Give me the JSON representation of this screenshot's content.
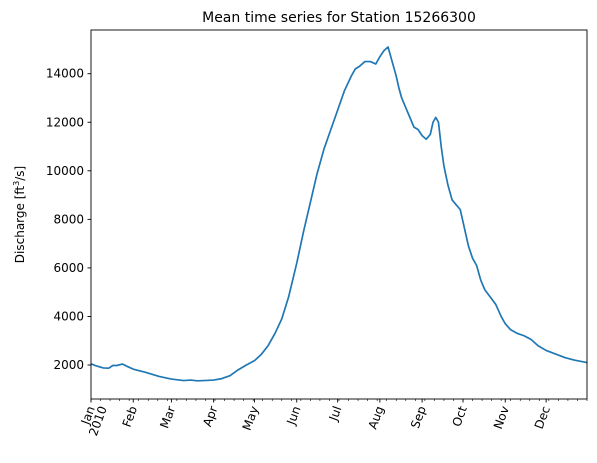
{
  "chart_data": {
    "type": "line",
    "title": "Mean time series for Station 15266300",
    "xlabel": "",
    "ylabel_prefix": "Discharge [ft",
    "ylabel_sup": "3",
    "ylabel_suffix": "/s]",
    "ylim": [
      600,
      15800
    ],
    "y_ticks": [
      2000,
      4000,
      6000,
      8000,
      10000,
      12000,
      14000
    ],
    "y_tick_labels": [
      "2000",
      "4000",
      "6000",
      "8000",
      "10000",
      "12000",
      "14000"
    ],
    "xlim": [
      "2010-01-01",
      "2010-12-31"
    ],
    "x_major_ticks": [
      {
        "date": "2010-01-01",
        "label": "Jan",
        "label2": "2010"
      },
      {
        "date": "2010-02-01",
        "label": "Feb"
      },
      {
        "date": "2010-03-01",
        "label": "Mar"
      },
      {
        "date": "2010-04-01",
        "label": "Apr"
      },
      {
        "date": "2010-05-01",
        "label": "May"
      },
      {
        "date": "2010-06-01",
        "label": "Jun"
      },
      {
        "date": "2010-07-01",
        "label": "Jul"
      },
      {
        "date": "2010-08-01",
        "label": "Aug"
      },
      {
        "date": "2010-09-01",
        "label": "Sep"
      },
      {
        "date": "2010-10-01",
        "label": "Oct"
      },
      {
        "date": "2010-11-01",
        "label": "Nov"
      },
      {
        "date": "2010-12-01",
        "label": "Dec"
      }
    ],
    "grid": false,
    "series": [
      {
        "color": "#1f77b4",
        "x": [
          "2010-01-01",
          "2010-01-05",
          "2010-01-10",
          "2010-01-14",
          "2010-01-17",
          "2010-01-20",
          "2010-01-24",
          "2010-01-28",
          "2010-02-01",
          "2010-02-10",
          "2010-02-20",
          "2010-03-01",
          "2010-03-10",
          "2010-03-15",
          "2010-03-20",
          "2010-03-25",
          "2010-04-01",
          "2010-04-07",
          "2010-04-13",
          "2010-04-19",
          "2010-04-25",
          "2010-05-01",
          "2010-05-06",
          "2010-05-11",
          "2010-05-16",
          "2010-05-21",
          "2010-05-26",
          "2010-06-01",
          "2010-06-06",
          "2010-06-11",
          "2010-06-16",
          "2010-06-21",
          "2010-06-26",
          "2010-07-01",
          "2010-07-06",
          "2010-07-11",
          "2010-07-14",
          "2010-07-17",
          "2010-07-21",
          "2010-07-25",
          "2010-07-29",
          "2010-08-01",
          "2010-08-04",
          "2010-08-07",
          "2010-08-10",
          "2010-08-13",
          "2010-08-15",
          "2010-08-17",
          "2010-08-20",
          "2010-08-23",
          "2010-08-26",
          "2010-08-29",
          "2010-09-01",
          "2010-09-04",
          "2010-09-07",
          "2010-09-09",
          "2010-09-11",
          "2010-09-13",
          "2010-09-15",
          "2010-09-17",
          "2010-09-20",
          "2010-09-23",
          "2010-09-26",
          "2010-09-29",
          "2010-10-01",
          "2010-10-03",
          "2010-10-05",
          "2010-10-08",
          "2010-10-11",
          "2010-10-14",
          "2010-10-17",
          "2010-10-21",
          "2010-10-25",
          "2010-10-29",
          "2010-11-01",
          "2010-11-05",
          "2010-11-10",
          "2010-11-15",
          "2010-11-20",
          "2010-11-25",
          "2010-12-01",
          "2010-12-08",
          "2010-12-15",
          "2010-12-22",
          "2010-12-31"
        ],
        "values": [
          2050,
          1960,
          1880,
          1870,
          1980,
          1980,
          2040,
          1930,
          1830,
          1700,
          1530,
          1420,
          1360,
          1380,
          1350,
          1360,
          1380,
          1440,
          1560,
          1800,
          2000,
          2180,
          2440,
          2800,
          3300,
          3900,
          4800,
          6200,
          7500,
          8700,
          9900,
          10900,
          11700,
          12500,
          13300,
          13900,
          14200,
          14300,
          14500,
          14500,
          14400,
          14700,
          14950,
          15100,
          14500,
          13900,
          13400,
          13000,
          12600,
          12200,
          11800,
          11700,
          11450,
          11300,
          11500,
          12000,
          12200,
          12000,
          11000,
          10200,
          9400,
          8800,
          8600,
          8400,
          7900,
          7400,
          6900,
          6400,
          6100,
          5500,
          5100,
          4800,
          4500,
          4000,
          3700,
          3450,
          3300,
          3200,
          3050,
          2800,
          2600,
          2450,
          2300,
          2200,
          2100
        ]
      }
    ]
  }
}
